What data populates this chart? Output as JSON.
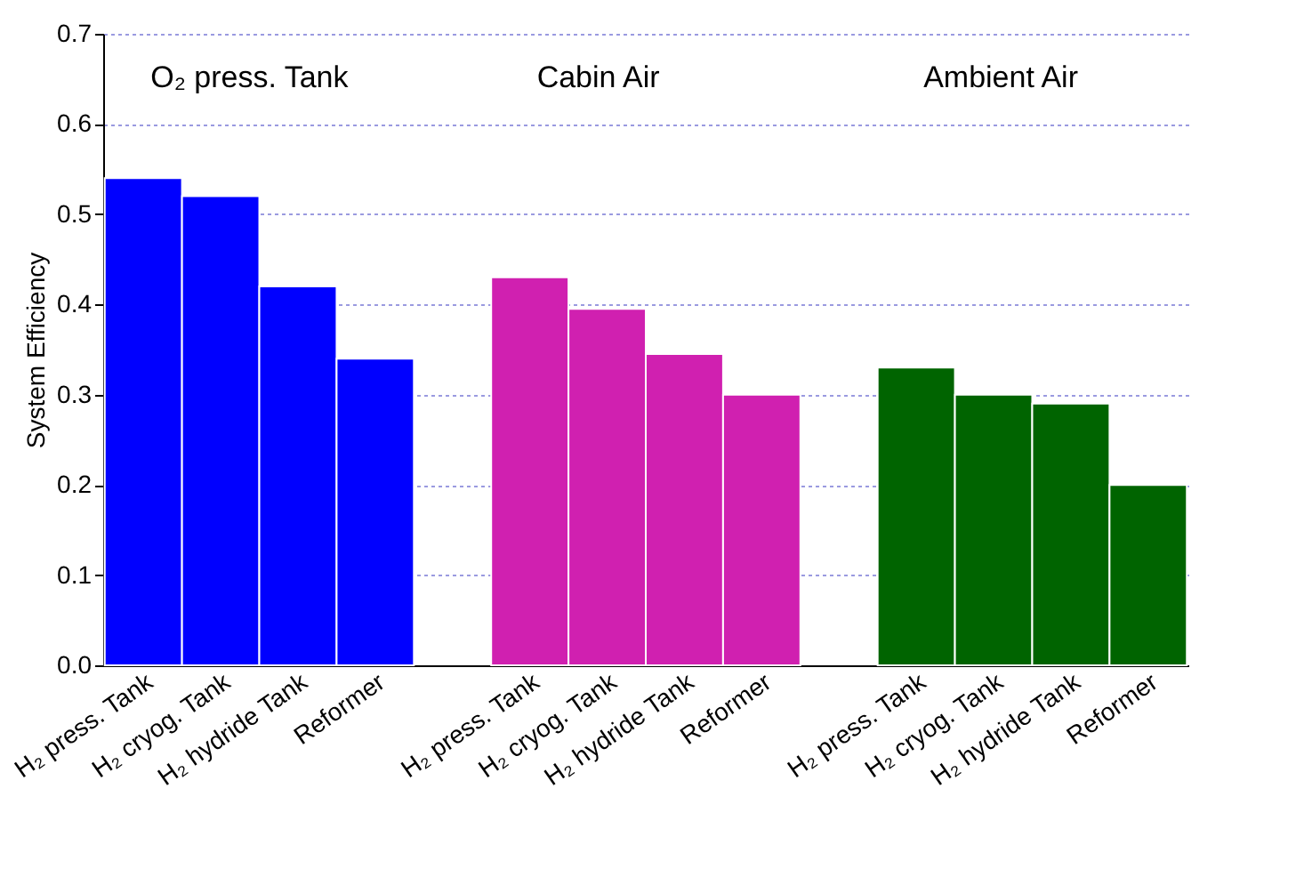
{
  "chart_data": {
    "type": "bar",
    "ylabel": "System Efficiency",
    "categories": [
      "H₂ press. Tank",
      "H₂ cryog. Tank",
      "H₂ hydride Tank",
      "Reformer",
      null,
      "H₂ press. Tank",
      "H₂ cryog. Tank",
      "H₂ hydride Tank",
      "Reformer",
      null,
      "H₂ press. Tank",
      "H₂ cryog. Tank",
      "H₂ hydride Tank",
      "Reformer"
    ],
    "values": [
      0.54,
      0.52,
      0.42,
      0.34,
      null,
      0.43,
      0.395,
      0.345,
      0.3,
      null,
      0.33,
      0.3,
      0.29,
      0.2
    ],
    "colors": [
      "#0000ff",
      "#0000ff",
      "#0000ff",
      "#0000ff",
      "#ffffff",
      "#d020b0",
      "#d020b0",
      "#d020b0",
      "#d020b0",
      "#ffffff",
      "#006400",
      "#006400",
      "#006400",
      "#006400"
    ],
    "ylim": [
      0,
      0.7
    ],
    "yticks": [
      {
        "value": 0,
        "label": "0.0"
      },
      0.1,
      0.2,
      0.3,
      0.4,
      0.5,
      0.6,
      0.7
    ],
    "grid": "y",
    "annotations": [
      "O₂ press. Tank",
      "Cabin Air",
      "Ambient Air"
    ]
  }
}
